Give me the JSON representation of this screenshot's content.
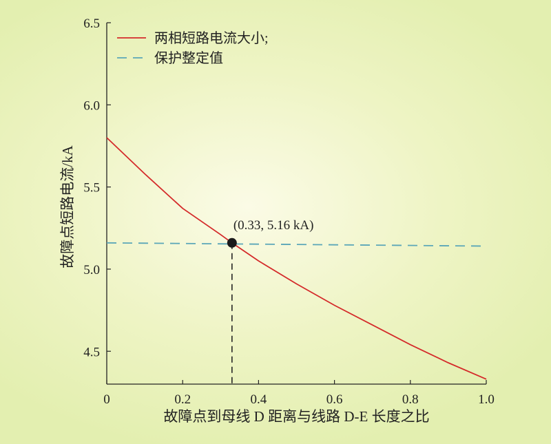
{
  "chart_data": {
    "type": "line",
    "xlabel": "故障点到母线 D 距离与线路 D-E 长度之比",
    "ylabel": "故障点短路电流/kA",
    "xlim": [
      0,
      1.0
    ],
    "ylim": [
      4.3,
      6.5
    ],
    "x_ticks": [
      "0",
      "0.2",
      "0.4",
      "0.6",
      "0.8",
      "1.0"
    ],
    "x_tick_values": [
      0,
      0.2,
      0.4,
      0.6,
      0.8,
      1.0
    ],
    "y_ticks": [
      "4.5",
      "5.0",
      "5.5",
      "6.0",
      "6.5"
    ],
    "y_tick_values": [
      4.5,
      5.0,
      5.5,
      6.0,
      6.5
    ],
    "grid": false,
    "legend_position": "top-left",
    "series": [
      {
        "name": "两相短路电流大小;",
        "color": "#d42a2a",
        "style": "solid",
        "x": [
          0,
          0.1,
          0.2,
          0.3,
          0.33,
          0.4,
          0.5,
          0.6,
          0.7,
          0.8,
          0.9,
          1.0
        ],
        "y": [
          5.8,
          5.58,
          5.37,
          5.21,
          5.16,
          5.05,
          4.91,
          4.78,
          4.66,
          4.54,
          4.43,
          4.33
        ]
      },
      {
        "name": "保护整定值",
        "color": "#5aa6b8",
        "style": "dashed",
        "x": [
          0,
          1.0
        ],
        "y": [
          5.16,
          5.14
        ]
      }
    ],
    "annotation": {
      "x": 0.33,
      "y": 5.16,
      "text": "(0.33, 5.16 kA)"
    }
  }
}
